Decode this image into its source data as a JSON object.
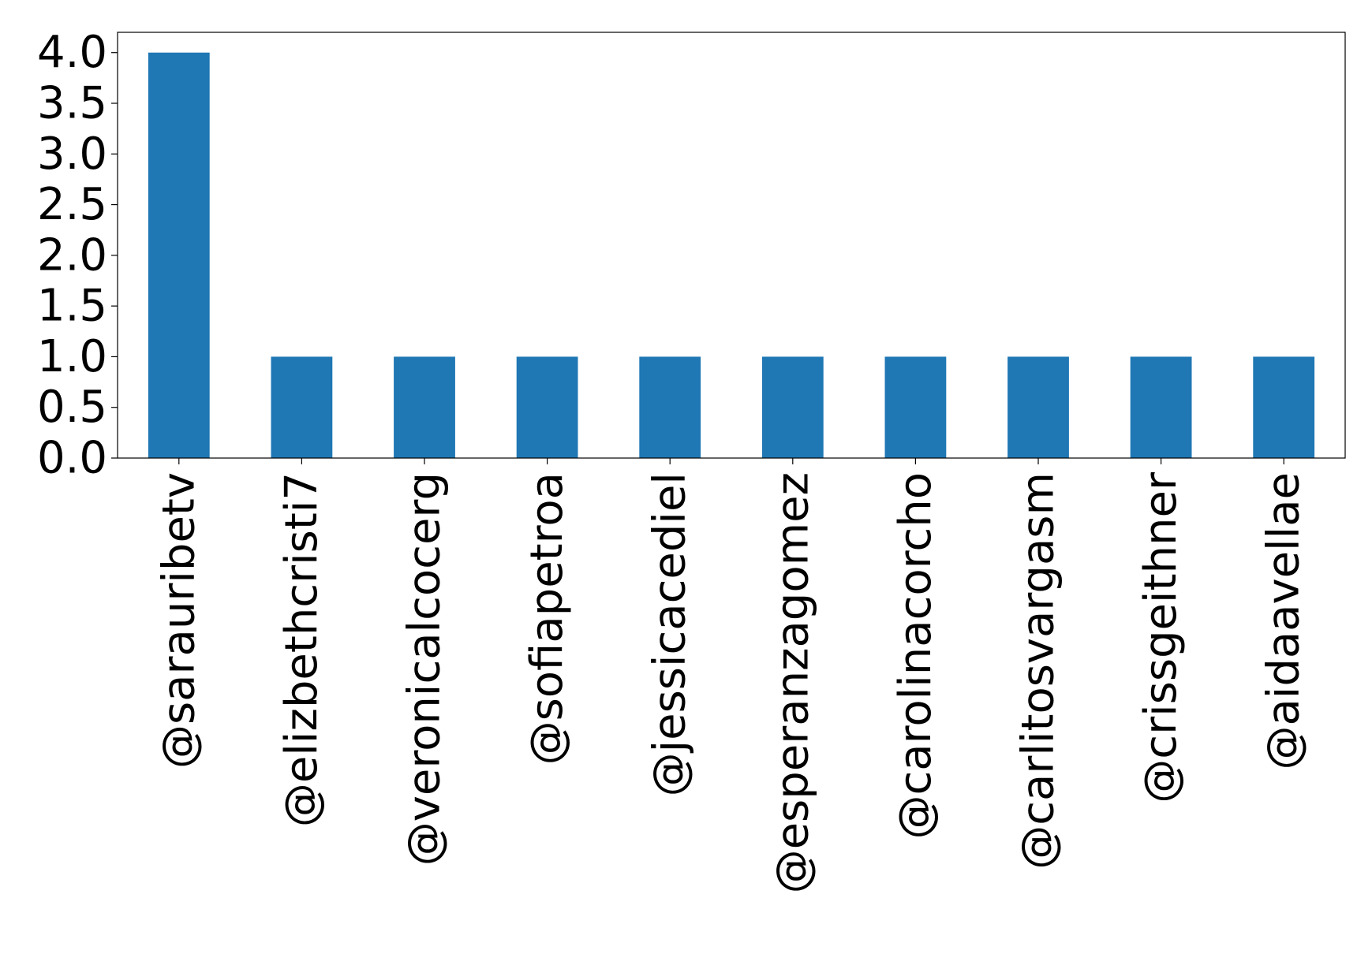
{
  "chart_data": {
    "type": "bar",
    "categories": [
      "@sarauribetv",
      "@elizbethcristi7",
      "@veronicalcocerg",
      "@sofiapetroa",
      "@jessicacediel",
      "@esperanzagomez",
      "@carolinacorcho",
      "@carlitosvargasm",
      "@crissgeithner",
      "@aidaavellae"
    ],
    "values": [
      4,
      1,
      1,
      1,
      1,
      1,
      1,
      1,
      1,
      1
    ],
    "ylim": [
      0,
      4.2
    ],
    "yticks": [
      "0.0",
      "0.5",
      "1.0",
      "1.5",
      "2.0",
      "2.5",
      "3.0",
      "3.5",
      "4.0"
    ],
    "title": "",
    "xlabel": "",
    "ylabel": "",
    "grid": false,
    "legend": "none",
    "bar_color": "#1f77b4"
  }
}
